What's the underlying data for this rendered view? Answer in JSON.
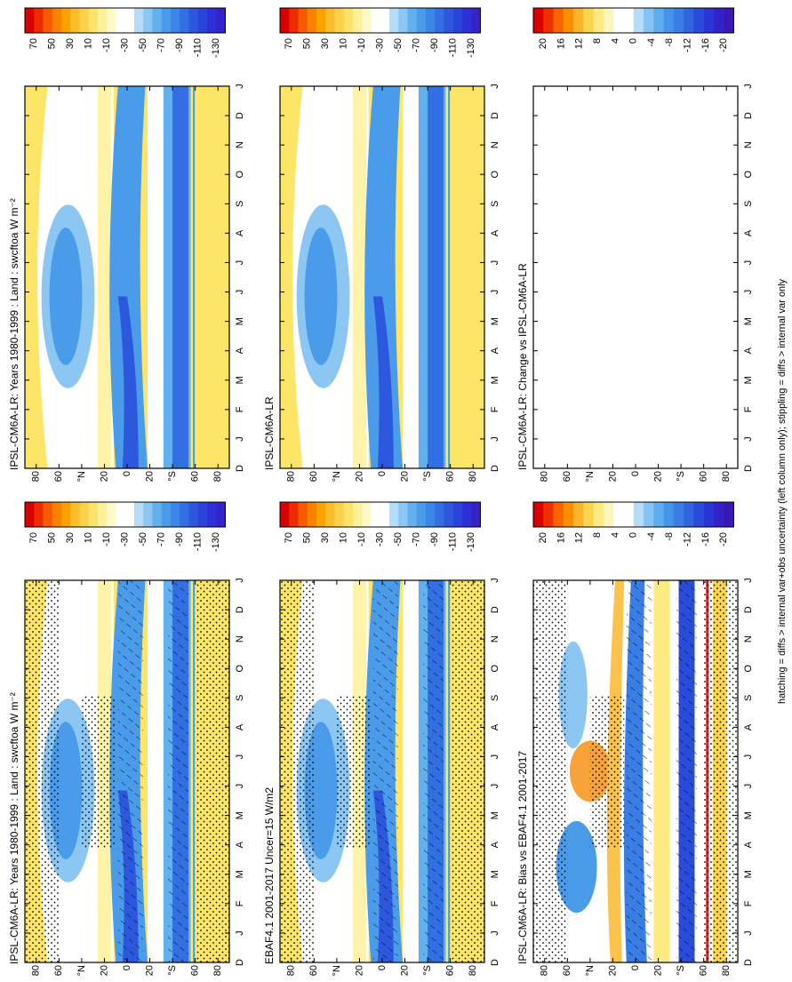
{
  "panels": [
    {
      "title": "IPSL-CM6A-LR: Years 1980-1999 : Land : swcftoa W m⁻²"
    },
    {
      "title": "EBAF4.1 2001-2017 Uncer=15 W/m2"
    },
    {
      "title": "IPSL-CM6A-LR: Bias vs EBAF4.1 2001-2017"
    },
    {
      "title": "IPSL-CM6A-LR: Years 1980-1999 : Land : swcftoa W m⁻²"
    },
    {
      "title": "IPSL-CM6A-LR"
    },
    {
      "title": "IPSL-CM6A-LR: Change vs IPSL-CM6A-LR"
    }
  ],
  "month_labels": [
    "D",
    "J",
    "F",
    "M",
    "A",
    "M",
    "J",
    "J",
    "A",
    "S",
    "O",
    "N",
    "D",
    "J"
  ],
  "lat_labels": [
    "80",
    "60",
    "°N",
    "20",
    "0",
    "20",
    "°S",
    "60",
    "80"
  ],
  "colorbars": {
    "field": [
      "70",
      "50",
      "30",
      "10",
      "-10",
      "-30",
      "-50",
      "-70",
      "-90",
      "-110",
      "-130"
    ],
    "bias": [
      "20",
      "16",
      "12",
      "8",
      "4",
      "0",
      "-4",
      "-8",
      "-12",
      "-16",
      "-20"
    ]
  },
  "footnote": "hatching = diffs > internal var+obs uncertainty (left column only); stippling = diffs > internal var only"
}
